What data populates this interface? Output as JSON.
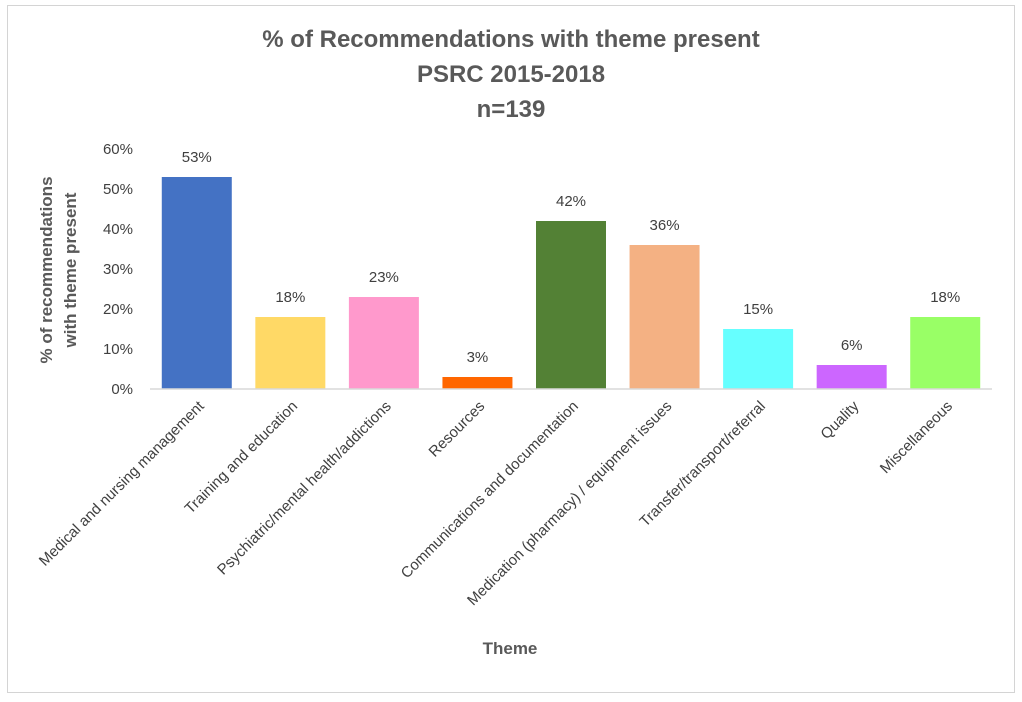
{
  "chart_data": {
    "type": "bar",
    "title": [
      "% of Recommendations with theme present",
      "PSRC 2015-2018",
      "n=139"
    ],
    "xlabel": "Theme",
    "ylabel": [
      "% of recommendations",
      "with theme  present"
    ],
    "categories": [
      "Medical and nursing management",
      "Training and education",
      "Psychiatric/mental health/addictions",
      "Resources",
      "Communications and documentation",
      "Medication (pharmacy) / equipment issues",
      "Transfer/transport/referral",
      "Quality",
      "Miscellaneous"
    ],
    "values": [
      53,
      18,
      23,
      3,
      42,
      36,
      15,
      6,
      18
    ],
    "data_labels": [
      "53%",
      "18%",
      "23%",
      "3%",
      "42%",
      "36%",
      "15%",
      "6%",
      "18%"
    ],
    "colors": [
      "#4472c4",
      "#ffd966",
      "#ff99cc",
      "#ff6600",
      "#538135",
      "#f4b183",
      "#66ffff",
      "#cc66ff",
      "#99ff66"
    ],
    "ylim": [
      0,
      60
    ],
    "yticks": [
      "0%",
      "10%",
      "20%",
      "30%",
      "40%",
      "50%",
      "60%"
    ],
    "grid": false,
    "legend": "none"
  }
}
